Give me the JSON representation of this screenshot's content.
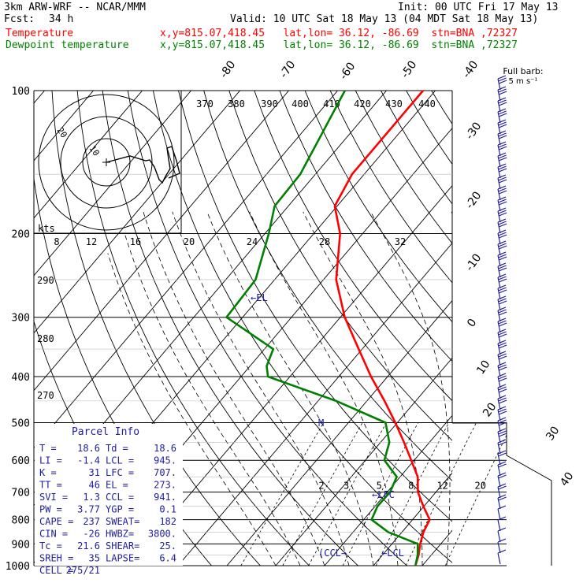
{
  "header": {
    "model": "3km ARW-WRF -- NCAR/MMM",
    "init": "Init: 00 UTC Fri 17 May 13",
    "fcst_label": "Fcst:",
    "fcst_value": "34 h",
    "valid": "Valid: 10 UTC Sat 18 May 13 (04 MDT Sat 18 May 13)",
    "temp_name": "Temperature",
    "temp_info": "x,y=815.07,418.45   lat,lon= 36.12, -86.69  stn=BNA ,72327",
    "dew_name": "Dewpoint temperature",
    "dew_info": "x,y=815.07,418.45   lat,lon= 36.12, -86.69  stn=BNA ,72327"
  },
  "colors": {
    "temperature": "#ff0000",
    "dewpoint": "#008000",
    "parcel_text": "#2020a0",
    "lines": "#000000"
  },
  "chart_data": {
    "type": "line",
    "title": "",
    "pressure_levels": [
      100,
      200,
      300,
      400,
      500,
      600,
      700,
      800,
      900,
      1000
    ],
    "isotherm_labels": [
      "-80",
      "-70",
      "-60",
      "-50",
      "-40",
      "-30",
      "-20",
      "-10",
      "0",
      "10",
      "20",
      "30",
      "40"
    ],
    "theta_labels": [
      "370",
      "380",
      "390",
      "400",
      "410",
      "420",
      "430",
      "440"
    ],
    "mixing_ratio_labels": [
      "2",
      "3",
      "5",
      "8",
      "12",
      "20"
    ],
    "hodo_speed_labels": [
      "8",
      "12",
      "16",
      "20",
      "24",
      "28",
      "32"
    ],
    "theta_e_labels": [
      "290",
      "280",
      "270"
    ],
    "hodo_units": "kts",
    "wind_legend": "Full barb:",
    "wind_legend_units": "5 m s⁻¹",
    "annotations": {
      "el": "EL",
      "lfc": "LFC",
      "ccl": "CCL",
      "lcl": "LCL",
      "m": "M"
    },
    "hodo_ring_labels": [
      "20",
      "10"
    ],
    "series": [
      {
        "name": "Temperature",
        "p": [
          100,
          150,
          175,
          200,
          250,
          300,
          350,
          400,
          450,
          500,
          550,
          600,
          650,
          700,
          750,
          800,
          850,
          900,
          950,
          1000
        ],
        "t": [
          -62.5,
          -62.5,
          -60.5,
          -54.6,
          -47.4,
          -39.1,
          -30.7,
          -23.4,
          -16.4,
          -10.4,
          -5.2,
          -0.6,
          3.6,
          6.3,
          9.9,
          13.5,
          14.4,
          15.8,
          17.4,
          18.6
        ]
      },
      {
        "name": "Dewpoint temperature",
        "p": [
          100,
          150,
          175,
          200,
          250,
          300,
          350,
          380,
          400,
          450,
          500,
          550,
          600,
          650,
          700,
          750,
          800,
          850,
          900,
          950,
          1000
        ],
        "t": [
          -78.5,
          -73.1,
          -72.8,
          -69.2,
          -63.9,
          -63.3,
          -48.2,
          -46.6,
          -44.5,
          -26.3,
          -12.4,
          -8.2,
          -6.1,
          -0.7,
          0.6,
          0.5,
          1.6,
          7.2,
          15.3,
          17.2,
          18.6
        ]
      }
    ],
    "parcel_info": {
      "title": "Parcel Info",
      "rows": [
        [
          "T  =",
          "18.6",
          "Td =",
          "18.6"
        ],
        [
          "LI =",
          "-1.4",
          "LCL =",
          "945."
        ],
        [
          "K  =",
          "31",
          "LFC =",
          "707."
        ],
        [
          "TT =",
          "46",
          "EL =",
          "273."
        ],
        [
          "SVI =",
          "1.3",
          "CCL =",
          "941."
        ],
        [
          "PW =",
          "3.77",
          "YGP =",
          "0.1"
        ],
        [
          "CAPE =",
          "237",
          "SWEAT=",
          "182"
        ],
        [
          "CIN =",
          "-26",
          "HWBZ=",
          "3800."
        ],
        [
          "Tc =",
          "21.6",
          "SHEAR=",
          "25."
        ],
        [
          "SREH =",
          "35",
          "LAPSE=",
          "6.4"
        ],
        [
          "CELL =",
          "275/21",
          "",
          ""
        ]
      ]
    }
  }
}
